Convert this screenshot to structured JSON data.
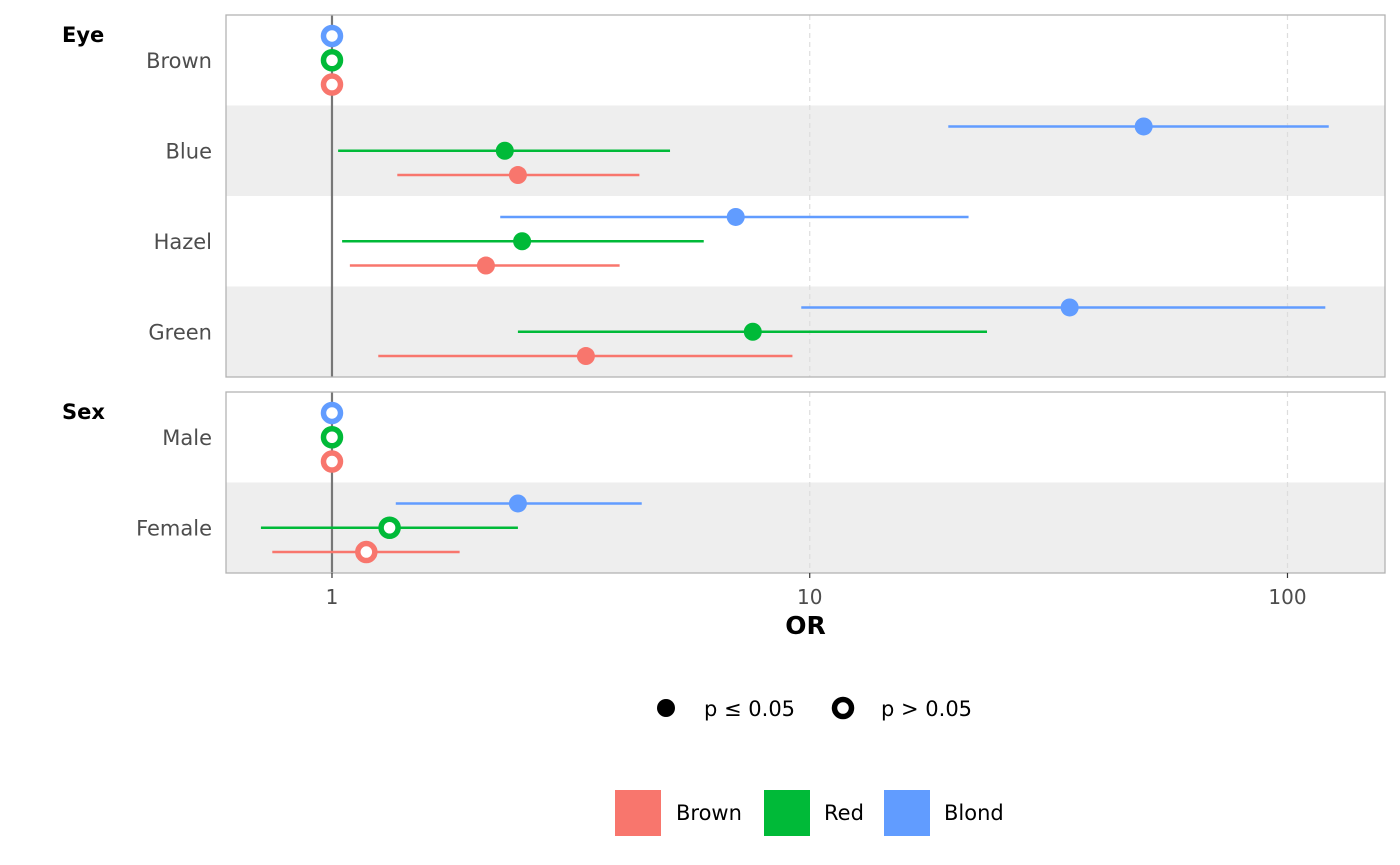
{
  "chart_data": {
    "type": "forest",
    "xlabel": "OR",
    "x_scale": "log10",
    "xlim": [
      0.6,
      160
    ],
    "x_ticks": [
      {
        "value": 1,
        "label": "1"
      },
      {
        "value": 10,
        "label": "10"
      },
      {
        "value": 100,
        "label": "100"
      }
    ],
    "reference_line": 1,
    "series": [
      {
        "name": "Brown",
        "color": "#F8766D"
      },
      {
        "name": "Red",
        "color": "#00BA38"
      },
      {
        "name": "Blond",
        "color": "#619CFF"
      }
    ],
    "groups": [
      {
        "label": "Eye",
        "rows": [
          {
            "label": "Brown",
            "estimates": [
              {
                "series": "Blond",
                "or": 1,
                "low": null,
                "high": null,
                "significant": false
              },
              {
                "series": "Red",
                "or": 1,
                "low": null,
                "high": null,
                "significant": false
              },
              {
                "series": "Brown",
                "or": 1,
                "low": null,
                "high": null,
                "significant": false
              }
            ]
          },
          {
            "label": "Blue",
            "estimates": [
              {
                "series": "Blond",
                "or": 50,
                "low": 19.5,
                "high": 122,
                "significant": true
              },
              {
                "series": "Red",
                "or": 2.3,
                "low": 1.03,
                "high": 5.1,
                "significant": true
              },
              {
                "series": "Brown",
                "or": 2.45,
                "low": 1.37,
                "high": 4.4,
                "significant": true
              }
            ]
          },
          {
            "label": "Hazel",
            "estimates": [
              {
                "series": "Blond",
                "or": 7,
                "low": 2.25,
                "high": 21.5,
                "significant": true
              },
              {
                "series": "Red",
                "or": 2.5,
                "low": 1.05,
                "high": 6.0,
                "significant": true
              },
              {
                "series": "Brown",
                "or": 2.1,
                "low": 1.09,
                "high": 4.0,
                "significant": true
              }
            ]
          },
          {
            "label": "Green",
            "estimates": [
              {
                "series": "Blond",
                "or": 35,
                "low": 9.6,
                "high": 120,
                "significant": true
              },
              {
                "series": "Red",
                "or": 7.6,
                "low": 2.45,
                "high": 23.5,
                "significant": true
              },
              {
                "series": "Brown",
                "or": 3.4,
                "low": 1.25,
                "high": 9.2,
                "significant": true
              }
            ]
          }
        ]
      },
      {
        "label": "Sex",
        "rows": [
          {
            "label": "Male",
            "estimates": [
              {
                "series": "Blond",
                "or": 1,
                "low": null,
                "high": null,
                "significant": false
              },
              {
                "series": "Red",
                "or": 1,
                "low": null,
                "high": null,
                "significant": false
              },
              {
                "series": "Brown",
                "or": 1,
                "low": null,
                "high": null,
                "significant": false
              }
            ]
          },
          {
            "label": "Female",
            "estimates": [
              {
                "series": "Blond",
                "or": 2.45,
                "low": 1.36,
                "high": 4.45,
                "significant": true
              },
              {
                "series": "Red",
                "or": 1.32,
                "low": 0.71,
                "high": 2.45,
                "significant": false
              },
              {
                "series": "Brown",
                "or": 1.18,
                "low": 0.75,
                "high": 1.85,
                "significant": false
              }
            ]
          }
        ]
      }
    ],
    "shape_legend": [
      {
        "label": "p ≤ 0.05",
        "filled": true
      },
      {
        "label": "p > 0.05",
        "filled": false
      }
    ],
    "legend_position": "bottom"
  }
}
